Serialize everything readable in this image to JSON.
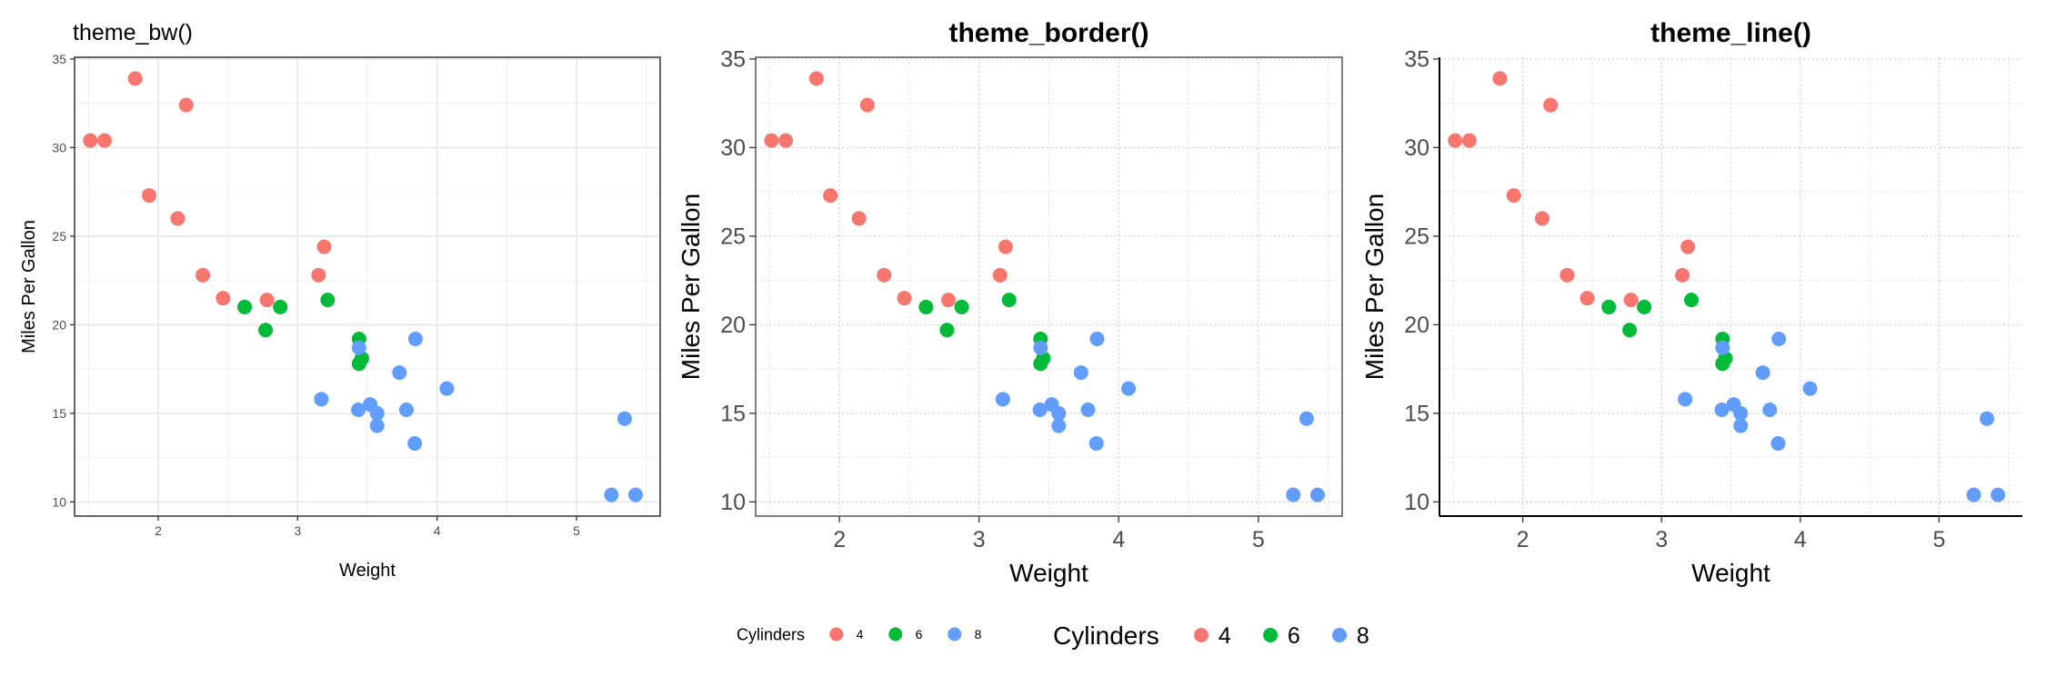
{
  "chart_data": {
    "panels": [
      {
        "type": "scatter",
        "title": "theme_bw()",
        "xlabel": "Weight",
        "ylabel": "Miles Per Gallon",
        "xticks": [
          2,
          3,
          4,
          5
        ],
        "yticks": [
          10,
          15,
          20,
          25,
          30,
          35
        ],
        "theme": "bw",
        "grid": "solid major and minor",
        "border": "full"
      },
      {
        "type": "scatter",
        "title": "theme_border()",
        "xlabel": "Weight",
        "ylabel": "Miles Per Gallon",
        "xticks": [
          2,
          3,
          4,
          5
        ],
        "yticks": [
          10,
          15,
          20,
          25,
          30,
          35
        ],
        "theme": "border",
        "grid": "dotted major and minor",
        "border": "full"
      },
      {
        "type": "scatter",
        "title": "theme_line()",
        "xlabel": "Weight",
        "ylabel": "Miles Per Gallon",
        "xticks": [
          2,
          3,
          4,
          5
        ],
        "yticks": [
          10,
          15,
          20,
          25,
          30,
          35
        ],
        "theme": "line",
        "grid": "dotted major and minor",
        "border": "left and bottom axis lines"
      }
    ],
    "xlim": [
      1.4,
      5.6
    ],
    "ylim": [
      9.2,
      35.1
    ],
    "legends": [
      {
        "title": "Cylinders",
        "size": "small",
        "placement": "bottom-center"
      },
      {
        "title": "Cylinders",
        "size": "large",
        "placement": "bottom-center"
      }
    ],
    "groups": [
      {
        "name": "4",
        "color": "#F8766D"
      },
      {
        "name": "6",
        "color": "#00BA38"
      },
      {
        "name": "8",
        "color": "#619CFF"
      }
    ],
    "series": [
      {
        "name": "4",
        "x": [
          2.32,
          3.19,
          3.15,
          2.2,
          1.615,
          1.835,
          2.465,
          1.935,
          2.14,
          1.513,
          2.78
        ],
        "y": [
          22.8,
          24.4,
          22.8,
          32.4,
          30.4,
          33.9,
          21.5,
          27.3,
          26.0,
          30.4,
          21.4
        ]
      },
      {
        "name": "6",
        "x": [
          2.62,
          2.875,
          3.215,
          3.46,
          3.44,
          3.44,
          2.77
        ],
        "y": [
          21.0,
          21.0,
          21.4,
          18.1,
          19.2,
          17.8,
          19.7
        ]
      },
      {
        "name": "8",
        "x": [
          3.44,
          3.57,
          4.07,
          3.73,
          3.78,
          5.25,
          5.424,
          5.345,
          3.52,
          3.435,
          3.84,
          3.845,
          3.17,
          3.57
        ],
        "y": [
          18.7,
          14.3,
          16.4,
          17.3,
          15.2,
          10.4,
          10.4,
          14.7,
          15.5,
          15.2,
          13.3,
          19.2,
          15.8,
          15.0
        ]
      }
    ]
  }
}
